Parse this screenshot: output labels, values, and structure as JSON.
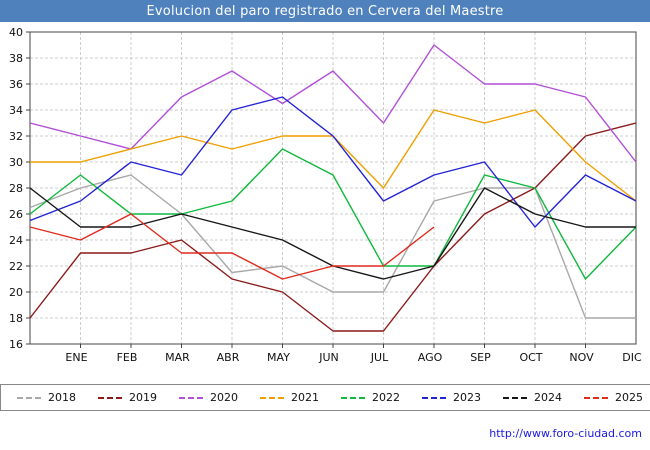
{
  "header": {
    "title": "Evolucion del paro registrado en Cervera del Maestre"
  },
  "footer": {
    "url": "http://www.foro-ciudad.com"
  },
  "chart_data": {
    "type": "line",
    "title": "Evolucion del paro registrado en Cervera del Maestre",
    "categories": [
      "ENE",
      "FEB",
      "MAR",
      "ABR",
      "MAY",
      "JUN",
      "JUL",
      "AGO",
      "SEP",
      "OCT",
      "NOV",
      "DIC"
    ],
    "points_note": "13 points per full series: value at left axis edge followed by 12 monthly values; 2025 ends at AGO",
    "ylim": [
      16,
      40
    ],
    "ytick_step": 2,
    "grid": true,
    "legend_position": "bottom",
    "series": [
      {
        "name": "2018",
        "color": "#a8a8a8",
        "values": [
          26.5,
          28,
          29,
          26,
          21.5,
          22,
          20,
          20,
          27,
          28,
          28,
          18,
          18
        ]
      },
      {
        "name": "2019",
        "color": "#8b1a1a",
        "values": [
          18,
          23,
          23,
          24,
          21,
          20,
          17,
          17,
          22,
          26,
          28,
          32,
          33
        ]
      },
      {
        "name": "2020",
        "color": "#b14fd8",
        "values": [
          33,
          32,
          31,
          35,
          37,
          34.5,
          37,
          33,
          39,
          36,
          36,
          35,
          30
        ]
      },
      {
        "name": "2021",
        "color": "#ef9f00",
        "values": [
          30,
          30,
          31,
          32,
          31,
          32,
          32,
          28,
          34,
          33,
          34,
          30,
          27
        ]
      },
      {
        "name": "2022",
        "color": "#0fb93c",
        "values": [
          26,
          29,
          26,
          26,
          27,
          31,
          29,
          22,
          22,
          29,
          28,
          21,
          25
        ]
      },
      {
        "name": "2023",
        "color": "#2323d6",
        "values": [
          25.5,
          27,
          30,
          29,
          34,
          35,
          32,
          27,
          29,
          30,
          25,
          29,
          27
        ]
      },
      {
        "name": "2024",
        "color": "#161616",
        "values": [
          28,
          25,
          25,
          26,
          25,
          24,
          22,
          21,
          22,
          28,
          26,
          25,
          25
        ]
      },
      {
        "name": "2025",
        "color": "#e02b1d",
        "values": [
          25,
          24,
          26,
          23,
          23,
          21,
          22,
          22,
          25
        ]
      }
    ]
  }
}
